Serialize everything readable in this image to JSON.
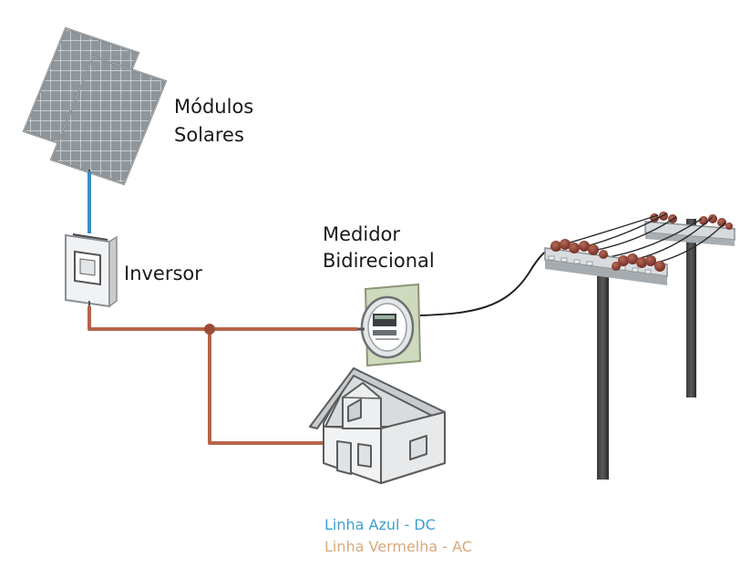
{
  "labels": {
    "solar_line1": "Módulos",
    "solar_line2": "Solares",
    "inverter": "Inversor",
    "meter_line1": "Medidor",
    "meter_line2": "Bidirecional"
  },
  "legend": {
    "dc": {
      "text": "Linha Azul - DC",
      "color": "#3d9fd0"
    },
    "ac": {
      "text": "Linha Vermelha - AC",
      "color": "#d9a97a"
    }
  },
  "colors": {
    "dc_wire": "#3a8fc6",
    "ac_wire": "#b5644a",
    "grid_cable": "#222222",
    "insulator": "#8a3e32"
  }
}
